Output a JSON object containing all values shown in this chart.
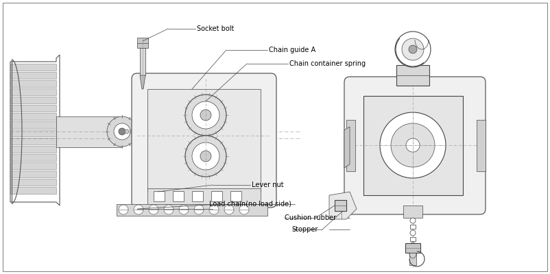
{
  "labels": {
    "socket_bolt": "Socket bolt",
    "chain_guide_a": "Chain guide A",
    "chain_container_spring": "Chain container spring",
    "lever_nut": "Lever nut",
    "load_chain": "Load chain(no load side)",
    "cushion_rubber": "Cushion rubber",
    "stopper": "Stopper"
  },
  "font_size": 7.0,
  "fig_width": 8.02,
  "fig_height": 4.0,
  "dpi": 100,
  "lc": "#444444",
  "lc_dark": "#222222",
  "lc_med": "#555555",
  "fc_light": "#e8e8e8",
  "fc_mid": "#d0d0d0",
  "fc_dark": "#b0b0b0"
}
